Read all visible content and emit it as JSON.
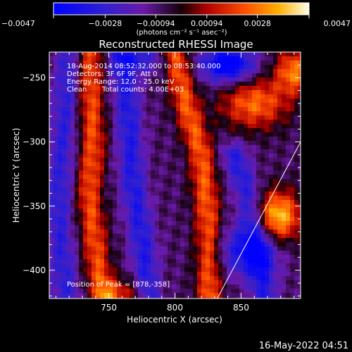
{
  "chart_data": {
    "type": "heatmap",
    "title": "Reconstructed RHESSI Image",
    "xlabel": "Heliocentric X (arcsec)",
    "ylabel": "Heliocentric Y (arcsec)",
    "xlim": [
      705,
      895
    ],
    "ylim": [
      -422,
      -230
    ],
    "x_ticks": [
      750,
      800,
      850
    ],
    "y_ticks": [
      -250,
      -300,
      -350,
      -400
    ],
    "colorbar": {
      "min": -0.0047,
      "max": 0.0047,
      "tick_values": [
        -0.0047,
        -0.0028,
        -0.00094,
        0.00094,
        0.0028,
        0.0047
      ],
      "tick_labels": [
        "-0.0047",
        "-0.0028",
        "-0.00094",
        "0.00094",
        "0.0028",
        "0.0047"
      ],
      "unit_label": "(photons cm⁻² s⁻¹ asec⁻²)"
    },
    "annotations": {
      "time_range": "18-Aug-2014 08:52:32.000 to 08:53:40.000",
      "detectors": "Detectors: 3F 6F 9F, Att 0",
      "energy": "Energy Range: 12.0 - 25.0 keV",
      "clean_label": "Clean",
      "total_counts": "Total counts: 4.00E+03",
      "peak": "Position of Peak = [878,-358]"
    },
    "peak_position": [
      878,
      -358
    ],
    "features": [
      {
        "kind": "ridge",
        "points": [
          [
            735,
            -232
          ],
          [
            738,
            -300
          ],
          [
            735,
            -340
          ],
          [
            742,
            -400
          ],
          [
            747,
            -422
          ]
        ],
        "value": 0.003
      },
      {
        "kind": "ridge",
        "points": [
          [
            760,
            -232
          ],
          [
            765,
            -280
          ],
          [
            768,
            -330
          ],
          [
            776,
            -380
          ],
          [
            780,
            -422
          ]
        ],
        "value": -0.0026
      },
      {
        "kind": "ridge",
        "points": [
          [
            800,
            -230
          ],
          [
            808,
            -270
          ],
          [
            820,
            -310
          ],
          [
            825,
            -360
          ],
          [
            826,
            -422
          ]
        ],
        "value": 0.0032
      },
      {
        "kind": "ridge",
        "points": [
          [
            720,
            -232
          ],
          [
            715,
            -300
          ],
          [
            712,
            -360
          ],
          [
            718,
            -422
          ]
        ],
        "value": -0.0022
      },
      {
        "kind": "ridge",
        "points": [
          [
            845,
            -310
          ],
          [
            855,
            -340
          ],
          [
            862,
            -380
          ],
          [
            868,
            -422
          ]
        ],
        "value": -0.0024
      },
      {
        "kind": "blob",
        "center": [
          878,
          -358
        ],
        "sigma": [
          12,
          14
        ],
        "value": 0.0047
      },
      {
        "kind": "blob",
        "center": [
          860,
          -270
        ],
        "sigma": [
          18,
          14
        ],
        "value": 0.0034
      },
      {
        "kind": "blob",
        "center": [
          890,
          -245
        ],
        "sigma": [
          10,
          12
        ],
        "value": 0.0036
      },
      {
        "kind": "blob",
        "center": [
          840,
          -240
        ],
        "sigma": [
          14,
          10
        ],
        "value": -0.0045
      },
      {
        "kind": "blob",
        "center": [
          775,
          -235
        ],
        "sigma": [
          12,
          8
        ],
        "value": -0.002
      },
      {
        "kind": "blob",
        "center": [
          760,
          -420
        ],
        "sigma": [
          14,
          10
        ],
        "value": 0.002
      },
      {
        "kind": "blob",
        "center": [
          855,
          -385
        ],
        "sigma": [
          16,
          14
        ],
        "value": -0.003
      }
    ],
    "limb_line": [
      [
        832,
        -422
      ],
      [
        895,
        -300
      ]
    ]
  },
  "footer": {
    "timestamp": "16-May-2022 04:51"
  }
}
